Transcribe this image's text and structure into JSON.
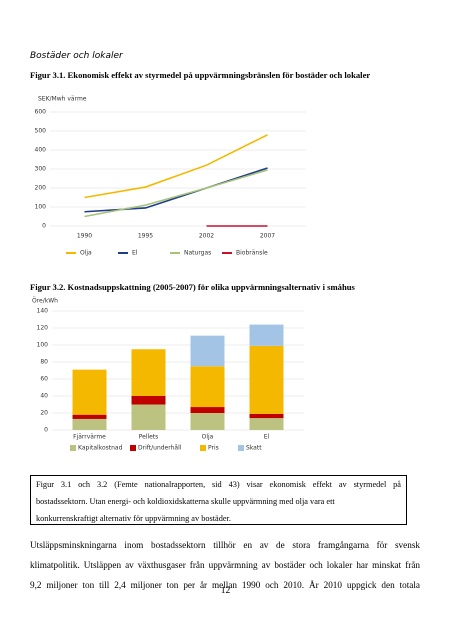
{
  "heading": "Bostäder och lokaler",
  "chart_data": [
    {
      "type": "line",
      "title": "Figur 3.1. Ekonomisk effekt av styrmedel på uppvärmningsbränslen för bostäder och lokaler",
      "ylabel": "SEK/Mwh värme",
      "categories": [
        "1990",
        "1995",
        "2002",
        "2007"
      ],
      "series": [
        {
          "name": "Olja",
          "color": "#f5b800",
          "values": [
            150,
            205,
            320,
            480
          ]
        },
        {
          "name": "El",
          "color": "#1f3c88",
          "values": [
            75,
            95,
            200,
            305
          ]
        },
        {
          "name": "Naturgas",
          "color": "#a9c27a",
          "values": [
            50,
            110,
            200,
            295
          ]
        },
        {
          "name": "Biobränsle",
          "color": "#c8102e",
          "values": [
            null,
            null,
            0,
            0
          ]
        }
      ],
      "ylim": [
        0,
        600
      ],
      "yticks": [
        0,
        100,
        200,
        300,
        400,
        500,
        600
      ],
      "grid": true
    },
    {
      "type": "stacked-bar",
      "title": "Figur 3.2. Kostnadsuppskattning (2005-2007) för olika uppvärmningsalternativ i småhus",
      "ylabel": "Öre/kWh",
      "categories": [
        "Fjärrvärme",
        "Pellets",
        "Olja",
        "El"
      ],
      "series": [
        {
          "name": "Kapitalkostnad",
          "color": "#bcc27f",
          "values": [
            13,
            30,
            20,
            14
          ]
        },
        {
          "name": "Drift/underhåll",
          "color": "#c00000",
          "values": [
            5,
            10,
            7,
            5
          ]
        },
        {
          "name": "Pris",
          "color": "#f5b800",
          "values": [
            53,
            55,
            48,
            80
          ]
        },
        {
          "name": "Skatt",
          "color": "#a3c4e4",
          "values": [
            null,
            null,
            36,
            25
          ]
        }
      ],
      "ylim": [
        0,
        140
      ],
      "yticks": [
        0,
        20,
        40,
        60,
        80,
        100,
        120,
        140
      ],
      "grid": true
    }
  ],
  "box_text": [
    "Figur 3.1 och 3.2 (Femte nationalrapporten, sid 43) visar ekonomisk effekt av styrmedel på",
    "bostadssektorn. Utan energi- och koldioxidskatterna skulle uppvärmning med olja vara ett",
    "konkurrenskraftigt alternativ för uppvärmning av bostäder."
  ],
  "paragraph": [
    "Utsläppsminskningarna inom bostadssektorn tillhör en av de stora framgångarna för svensk",
    "klimatpolitik. Utsläppen av växthusgaser från uppvärmning av bostäder och lokaler har minskat från",
    "9,2 miljoner ton till 2,4 miljoner ton per år mellan 1990 och 2010. År 2010 uppgick den totala"
  ],
  "page_number": "12"
}
